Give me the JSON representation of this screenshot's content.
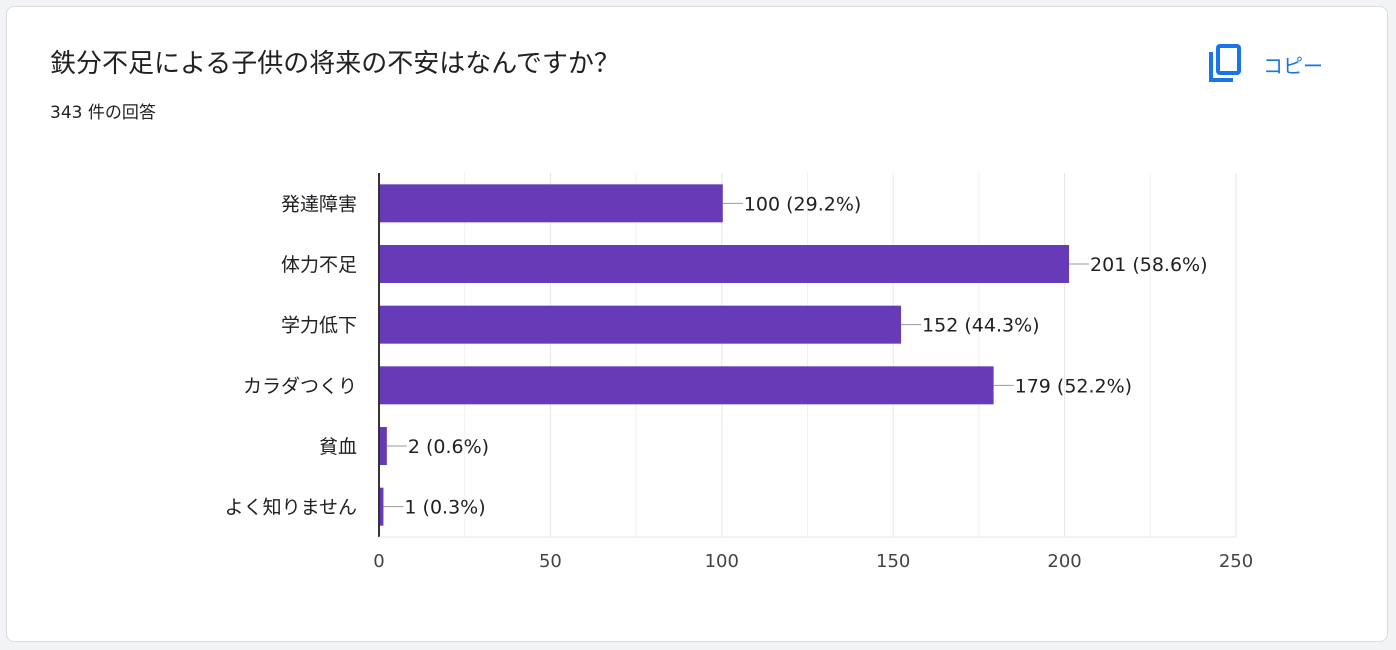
{
  "question": {
    "title": "鉄分不足による子供の将来の不安はなんですか？",
    "response_count": "343 件の回答"
  },
  "copy_button": {
    "label": "コピー",
    "icon": "copy-icon"
  },
  "colors": {
    "bar": "#673ab7",
    "accent": "#1a73e8",
    "grid": "#e6e6e6",
    "axis": "#333333"
  },
  "chart_data": {
    "type": "bar",
    "orientation": "horizontal",
    "categories": [
      "発達障害",
      "体力不足",
      "学力低下",
      "カラダつくり",
      "貧血",
      "よく知りません"
    ],
    "values": [
      100,
      201,
      152,
      179,
      2,
      1
    ],
    "data_labels": [
      "100 (29.2%)",
      "201 (58.6%)",
      "152 (44.3%)",
      "179 (52.2%)",
      "2 (0.6%)",
      "1 (0.3%)"
    ],
    "xlim": [
      0,
      250
    ],
    "xticks": [
      0,
      50,
      100,
      150,
      200,
      250
    ],
    "grid": true
  }
}
